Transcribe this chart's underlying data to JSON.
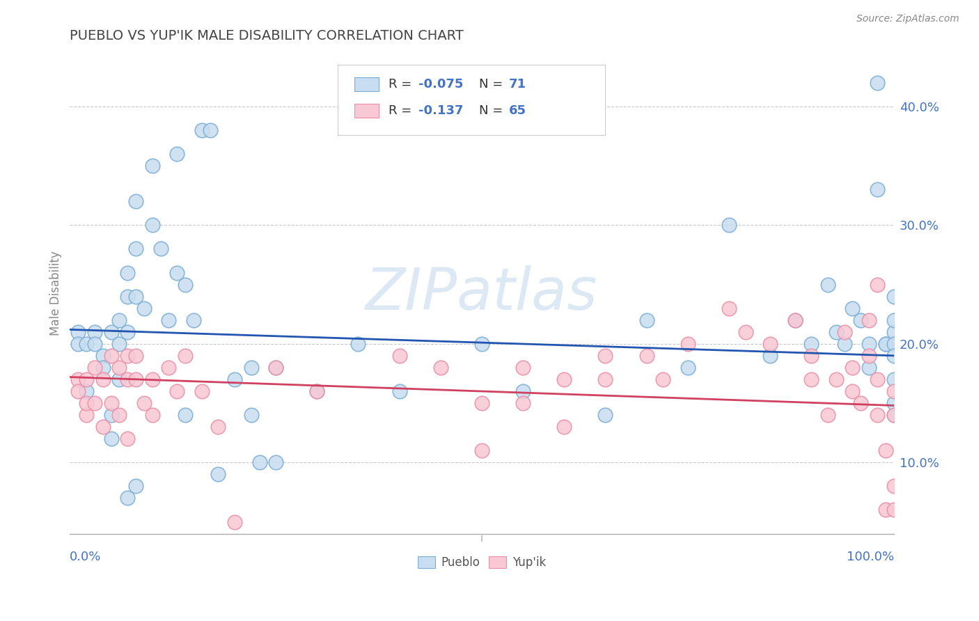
{
  "title": "PUEBLO VS YUP'IK MALE DISABILITY CORRELATION CHART",
  "source": "Source: ZipAtlas.com",
  "ylabel": "Male Disability",
  "xlim": [
    0.0,
    1.0
  ],
  "ylim": [
    0.04,
    0.445
  ],
  "pueblo_color_face": "#c8ddf0",
  "pueblo_color_edge": "#7aadd4",
  "yupik_color_face": "#f8c8d4",
  "yupik_color_edge": "#e890a8",
  "pueblo_line_color": "#2255b0",
  "yupik_line_color": "#d04060",
  "grid_color": "#c8c8c8",
  "title_color": "#444444",
  "watermark_color": "#dce8f4",
  "tick_color": "#4472c4",
  "label_color": "#888888",
  "yticks": [
    0.1,
    0.2,
    0.3,
    0.4
  ],
  "ytick_labels": [
    "10.0%",
    "20.0%",
    "30.0%",
    "40.0%"
  ],
  "pueblo_x": [
    0.01,
    0.01,
    0.02,
    0.02,
    0.03,
    0.03,
    0.04,
    0.04,
    0.05,
    0.05,
    0.05,
    0.06,
    0.06,
    0.06,
    0.07,
    0.07,
    0.07,
    0.08,
    0.08,
    0.08,
    0.09,
    0.1,
    0.1,
    0.11,
    0.12,
    0.13,
    0.14,
    0.15,
    0.16,
    0.17,
    0.18,
    0.2,
    0.22,
    0.23,
    0.25,
    0.3,
    0.35,
    0.4,
    0.5,
    0.55,
    0.65,
    0.7,
    0.75,
    0.8,
    0.85,
    0.88,
    0.9,
    0.92,
    0.93,
    0.94,
    0.95,
    0.96,
    0.97,
    0.97,
    0.98,
    0.98,
    0.99,
    0.99,
    1.0,
    1.0,
    1.0,
    1.0,
    1.0,
    1.0,
    1.0,
    1.0,
    0.13,
    0.14,
    0.22,
    0.08,
    0.07,
    0.25
  ],
  "pueblo_y": [
    0.21,
    0.2,
    0.2,
    0.16,
    0.21,
    0.2,
    0.19,
    0.18,
    0.21,
    0.14,
    0.12,
    0.22,
    0.2,
    0.17,
    0.26,
    0.24,
    0.21,
    0.32,
    0.28,
    0.24,
    0.23,
    0.35,
    0.3,
    0.28,
    0.22,
    0.36,
    0.25,
    0.22,
    0.38,
    0.38,
    0.09,
    0.17,
    0.18,
    0.1,
    0.18,
    0.16,
    0.2,
    0.16,
    0.2,
    0.16,
    0.14,
    0.22,
    0.18,
    0.3,
    0.19,
    0.22,
    0.2,
    0.25,
    0.21,
    0.2,
    0.23,
    0.22,
    0.2,
    0.18,
    0.42,
    0.33,
    0.2,
    0.2,
    0.14,
    0.24,
    0.21,
    0.2,
    0.19,
    0.15,
    0.22,
    0.17,
    0.26,
    0.14,
    0.14,
    0.08,
    0.07,
    0.1
  ],
  "yupik_x": [
    0.01,
    0.01,
    0.02,
    0.02,
    0.02,
    0.03,
    0.03,
    0.04,
    0.04,
    0.05,
    0.05,
    0.06,
    0.06,
    0.07,
    0.07,
    0.07,
    0.08,
    0.08,
    0.09,
    0.1,
    0.1,
    0.12,
    0.13,
    0.14,
    0.16,
    0.18,
    0.2,
    0.25,
    0.3,
    0.4,
    0.45,
    0.5,
    0.55,
    0.6,
    0.65,
    0.65,
    0.7,
    0.72,
    0.75,
    0.8,
    0.82,
    0.85,
    0.88,
    0.9,
    0.9,
    0.92,
    0.93,
    0.94,
    0.95,
    0.96,
    0.97,
    0.97,
    0.98,
    0.98,
    0.99,
    0.99,
    1.0,
    1.0,
    1.0,
    1.0,
    0.5,
    0.55,
    0.6,
    0.95,
    0.98
  ],
  "yupik_y": [
    0.17,
    0.16,
    0.14,
    0.17,
    0.15,
    0.18,
    0.15,
    0.17,
    0.13,
    0.19,
    0.15,
    0.18,
    0.14,
    0.19,
    0.17,
    0.12,
    0.19,
    0.17,
    0.15,
    0.17,
    0.14,
    0.18,
    0.16,
    0.19,
    0.16,
    0.13,
    0.05,
    0.18,
    0.16,
    0.19,
    0.18,
    0.15,
    0.18,
    0.17,
    0.19,
    0.17,
    0.19,
    0.17,
    0.2,
    0.23,
    0.21,
    0.2,
    0.22,
    0.19,
    0.17,
    0.14,
    0.17,
    0.21,
    0.16,
    0.15,
    0.22,
    0.19,
    0.25,
    0.17,
    0.11,
    0.06,
    0.16,
    0.14,
    0.06,
    0.08,
    0.11,
    0.15,
    0.13,
    0.18,
    0.14
  ],
  "pueblo_line_start_y": 0.212,
  "pueblo_line_end_y": 0.19,
  "yupik_line_start_y": 0.172,
  "yupik_line_end_y": 0.148
}
